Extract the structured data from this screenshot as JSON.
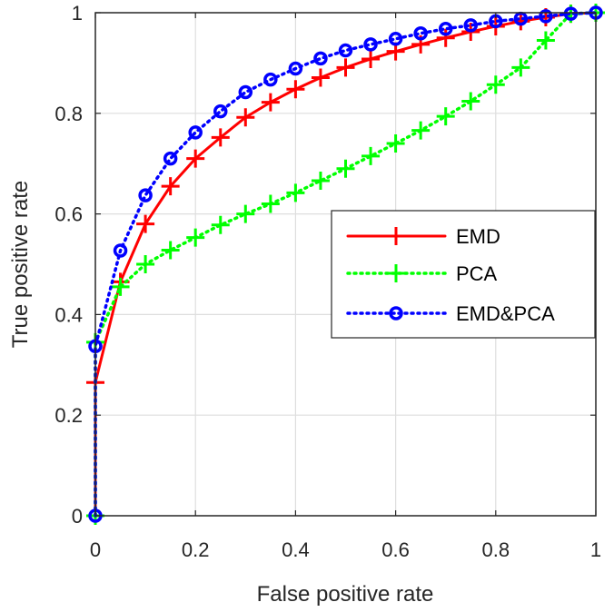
{
  "chart_data": {
    "type": "line",
    "title": "",
    "xlabel": "False positive rate",
    "ylabel": "True positive rate",
    "xlim": [
      0,
      1
    ],
    "ylim": [
      0,
      1
    ],
    "xticks": [
      "0",
      "0.2",
      "0.4",
      "0.6",
      "0.8",
      "1"
    ],
    "yticks": [
      "0",
      "0.2",
      "0.4",
      "0.6",
      "0.8",
      "1"
    ],
    "grid": true,
    "legend_position": "center-right",
    "series": [
      {
        "name": "EMD",
        "color": "#ff0000",
        "line_style": "solid",
        "marker": "plus",
        "x": [
          0,
          0,
          0.05,
          0.1,
          0.15,
          0.2,
          0.25,
          0.3,
          0.35,
          0.4,
          0.45,
          0.5,
          0.55,
          0.6,
          0.65,
          0.7,
          0.75,
          0.8,
          0.85,
          0.9,
          0.95,
          1
        ],
        "y": [
          0,
          0.265,
          0.465,
          0.58,
          0.655,
          0.71,
          0.752,
          0.792,
          0.822,
          0.848,
          0.871,
          0.891,
          0.908,
          0.923,
          0.937,
          0.95,
          0.962,
          0.973,
          0.983,
          0.991,
          0.998,
          1
        ]
      },
      {
        "name": "PCA",
        "color": "#00ff00",
        "line_style": "dotted",
        "marker": "plus",
        "x": [
          0,
          0,
          0.05,
          0.1,
          0.15,
          0.2,
          0.25,
          0.3,
          0.35,
          0.4,
          0.45,
          0.5,
          0.55,
          0.6,
          0.65,
          0.7,
          0.75,
          0.8,
          0.85,
          0.9,
          0.95,
          1
        ],
        "y": [
          0,
          0.345,
          0.455,
          0.5,
          0.528,
          0.553,
          0.578,
          0.6,
          0.62,
          0.642,
          0.666,
          0.69,
          0.715,
          0.74,
          0.766,
          0.794,
          0.824,
          0.857,
          0.891,
          0.945,
          0.998,
          1
        ]
      },
      {
        "name": "EMD&PCA",
        "color": "#0000ff",
        "line_style": "dotted",
        "marker": "circle",
        "x": [
          0,
          0,
          0.05,
          0.1,
          0.15,
          0.2,
          0.25,
          0.3,
          0.35,
          0.4,
          0.45,
          0.5,
          0.55,
          0.6,
          0.65,
          0.7,
          0.75,
          0.8,
          0.85,
          0.9,
          0.95,
          1
        ],
        "y": [
          0,
          0.337,
          0.527,
          0.637,
          0.71,
          0.762,
          0.804,
          0.842,
          0.867,
          0.889,
          0.909,
          0.925,
          0.937,
          0.948,
          0.959,
          0.968,
          0.975,
          0.983,
          0.988,
          0.993,
          0.998,
          1
        ]
      }
    ]
  }
}
